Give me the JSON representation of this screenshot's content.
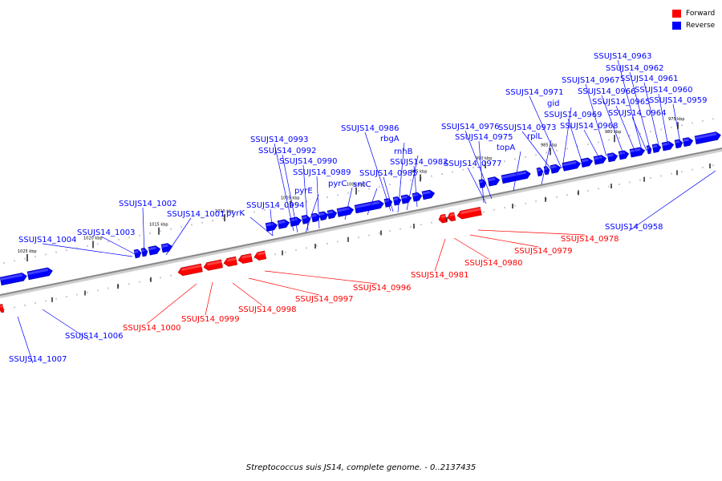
{
  "legend": {
    "items": [
      {
        "label": "Forward",
        "color": "#ff0000"
      },
      {
        "label": "Reverse",
        "color": "#0000ff"
      }
    ]
  },
  "caption": "Streptococcus suis JS14, complete genome. - 0..2137435",
  "colors": {
    "forward": "#ff0000",
    "reverse": "#0000ff",
    "backbone": "#888888",
    "forward_dark": "#b00000",
    "reverse_dark": "#0000a0"
  },
  "scale_ticks": [
    "1025 kbp",
    "1020 kbp",
    "1015 kbp",
    "1010 kbp",
    "1005 kbp",
    "1000 kbp",
    "995 kbp",
    "990 kbp",
    "985 kbp",
    "980 kbp",
    "975 kbp"
  ],
  "reverse_labels": [
    "SSUJS14_0963",
    "SSUJS14_0962",
    "SSUJS14_0961",
    "SSUJS14_0967",
    "SSUJS14_0960",
    "SSUJS14_0971",
    "SSUJS14_0966",
    "SSUJS14_0959",
    "gid",
    "SSUJS14_0965",
    "SSUJS14_0969",
    "SSUJS14_0964",
    "SSUJS14_0976",
    "SSUJS14_0973",
    "SSUJS14_0968",
    "SSUJS14_0986",
    "SSUJS14_0975",
    "rplL",
    "SSUJS14_0993",
    "rbgA",
    "topA",
    "SSUJS14_0992",
    "rnhB",
    "SSUJS14_0990",
    "SSUJS14_0982",
    "SSUJS14_0977",
    "SSUJS14_0989",
    "SSUJS14_0985",
    "pyrC",
    "sntC",
    "pyrE",
    "SSUJS14_1002",
    "SSUJS14_0994",
    "pyrK",
    "SSUJS14_1001",
    "SSUJS14_1003",
    "SSUJS14_1004",
    "SSUJS14_0958",
    "SSUJS14_1006",
    "SSUJS14_1007"
  ],
  "forward_labels": [
    "SSUJS14_0978",
    "SSUJS14_0979",
    "SSUJS14_0980",
    "SSUJS14_0981",
    "SSUJS14_0996",
    "SSUJS14_0997",
    "SSUJS14_0998",
    "SSUJS14_1000",
    "SSUJS14_0999"
  ]
}
